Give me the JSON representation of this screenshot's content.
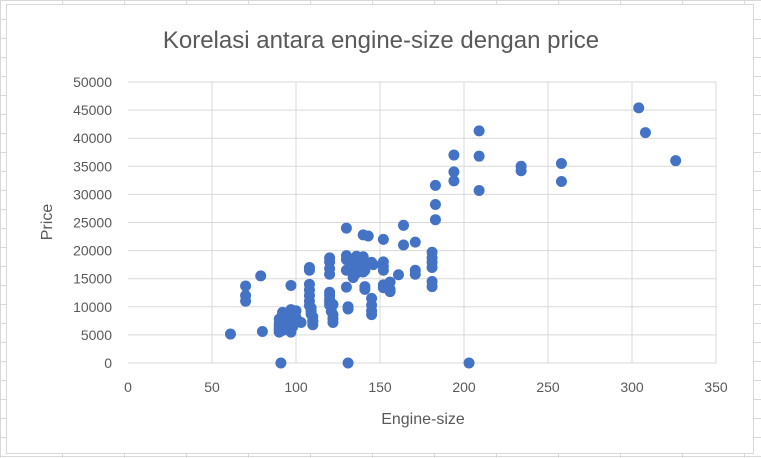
{
  "chart_data": {
    "type": "scatter",
    "title": "Korelasi antara engine-size dengan price",
    "xlabel": "Engine-size",
    "ylabel": "Price",
    "xlim": [
      0,
      350
    ],
    "ylim": [
      0,
      50000
    ],
    "xticks": [
      0,
      50,
      100,
      150,
      200,
      250,
      300,
      350
    ],
    "yticks": [
      0,
      5000,
      10000,
      15000,
      20000,
      25000,
      30000,
      35000,
      40000,
      45000,
      50000
    ],
    "grid": true,
    "legend": "none",
    "marker_color": "#4472C4",
    "series": [
      {
        "points": [
          [
            61,
            5150
          ],
          [
            70,
            13700
          ],
          [
            70,
            12000
          ],
          [
            70,
            11000
          ],
          [
            79,
            15500
          ],
          [
            80,
            5600
          ],
          [
            90,
            7800
          ],
          [
            90,
            7000
          ],
          [
            90,
            6500
          ],
          [
            90,
            6000
          ],
          [
            90,
            5500
          ],
          [
            91,
            0
          ],
          [
            92,
            9000
          ],
          [
            92,
            8500
          ],
          [
            92,
            7600
          ],
          [
            92,
            6900
          ],
          [
            92,
            6300
          ],
          [
            92,
            5800
          ],
          [
            97,
            9500
          ],
          [
            97,
            8600
          ],
          [
            97,
            7900
          ],
          [
            97,
            7100
          ],
          [
            97,
            6600
          ],
          [
            97,
            5500
          ],
          [
            97,
            13800
          ],
          [
            98,
            8900
          ],
          [
            98,
            7700
          ],
          [
            98,
            6400
          ],
          [
            100,
            9300
          ],
          [
            100,
            8100
          ],
          [
            103,
            7200
          ],
          [
            108,
            17000
          ],
          [
            108,
            16500
          ],
          [
            108,
            14000
          ],
          [
            108,
            13000
          ],
          [
            108,
            12000
          ],
          [
            108,
            11000
          ],
          [
            108,
            10200
          ],
          [
            109,
            9800
          ],
          [
            109,
            9200
          ],
          [
            109,
            8700
          ],
          [
            110,
            8200
          ],
          [
            110,
            7400
          ],
          [
            110,
            6800
          ],
          [
            110,
            7500
          ],
          [
            120,
            18700
          ],
          [
            120,
            18000
          ],
          [
            120,
            16800
          ],
          [
            120,
            15800
          ],
          [
            120,
            12600
          ],
          [
            120,
            12000
          ],
          [
            120,
            11300
          ],
          [
            120,
            10900
          ],
          [
            120,
            10300
          ],
          [
            121,
            9900
          ],
          [
            121,
            9200
          ],
          [
            122,
            8600
          ],
          [
            122,
            7900
          ],
          [
            122,
            7200
          ],
          [
            122,
            10400
          ],
          [
            130,
            24000
          ],
          [
            130,
            19100
          ],
          [
            130,
            18400
          ],
          [
            130,
            16500
          ],
          [
            130,
            13500
          ],
          [
            131,
            10000
          ],
          [
            131,
            9600
          ],
          [
            131,
            0
          ],
          [
            132,
            18000
          ],
          [
            134,
            17100
          ],
          [
            134,
            15200
          ],
          [
            136,
            19000
          ],
          [
            136,
            17600
          ],
          [
            136,
            16000
          ],
          [
            140,
            22800
          ],
          [
            140,
            18900
          ],
          [
            140,
            17400
          ],
          [
            140,
            16200
          ],
          [
            141,
            13600
          ],
          [
            141,
            13100
          ],
          [
            141,
            17200
          ],
          [
            141,
            16500
          ],
          [
            143,
            22600
          ],
          [
            145,
            17900
          ],
          [
            145,
            11500
          ],
          [
            145,
            10300
          ],
          [
            145,
            9300
          ],
          [
            145,
            8600
          ],
          [
            146,
            17500
          ],
          [
            152,
            22000
          ],
          [
            152,
            18000
          ],
          [
            152,
            17200
          ],
          [
            152,
            16500
          ],
          [
            152,
            13900
          ],
          [
            152,
            13400
          ],
          [
            156,
            14400
          ],
          [
            156,
            13100
          ],
          [
            156,
            12700
          ],
          [
            161,
            15700
          ],
          [
            164,
            24500
          ],
          [
            164,
            21000
          ],
          [
            171,
            21500
          ],
          [
            171,
            16500
          ],
          [
            171,
            15800
          ],
          [
            181,
            19700
          ],
          [
            181,
            18700
          ],
          [
            181,
            17900
          ],
          [
            181,
            17000
          ],
          [
            181,
            14500
          ],
          [
            181,
            13600
          ],
          [
            183,
            31600
          ],
          [
            183,
            28200
          ],
          [
            183,
            25500
          ],
          [
            194,
            37000
          ],
          [
            194,
            34000
          ],
          [
            194,
            32400
          ],
          [
            203,
            0
          ],
          [
            209,
            41300
          ],
          [
            209,
            36800
          ],
          [
            209,
            30700
          ],
          [
            234,
            35000
          ],
          [
            234,
            34200
          ],
          [
            258,
            35500
          ],
          [
            258,
            32300
          ],
          [
            304,
            45400
          ],
          [
            308,
            41000
          ],
          [
            326,
            36000
          ]
        ]
      }
    ]
  }
}
